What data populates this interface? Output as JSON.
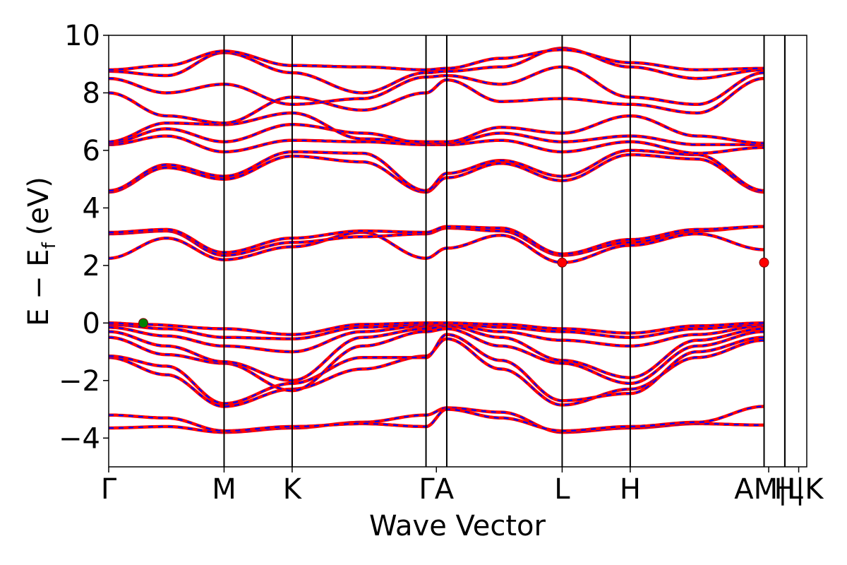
{
  "chart_data": {
    "type": "line",
    "title": "",
    "xlabel": "Wave Vector",
    "ylabel_main": "E − E",
    "ylabel_sub": "f",
    "ylabel_unit": "(eV)",
    "ylim": [
      -5,
      10
    ],
    "xlim": [
      0,
      6.05
    ],
    "yticks": [
      {
        "value": 10,
        "label": "10"
      },
      {
        "value": 8,
        "label": "8"
      },
      {
        "value": 6,
        "label": "6"
      },
      {
        "value": 4,
        "label": "4"
      },
      {
        "value": 2,
        "label": "2"
      },
      {
        "value": 0,
        "label": "0"
      },
      {
        "value": -2,
        "label": "−2"
      },
      {
        "value": -4,
        "label": "−4"
      }
    ],
    "kpoints": [
      {
        "label": "Γ",
        "x": 0.0
      },
      {
        "label": "M",
        "x": 1.0
      },
      {
        "label": "K",
        "x": 1.59
      },
      {
        "label": "Γ",
        "x": 2.75
      },
      {
        "label": "A",
        "x": 2.93
      },
      {
        "label": "L",
        "x": 3.93
      },
      {
        "label": "H",
        "x": 4.52
      },
      {
        "label": "A",
        "x": 5.68
      },
      {
        "label": "M",
        "x": 5.68
      },
      {
        "label": "L",
        "x": 5.86
      },
      {
        "label": "K",
        "x": 6.05
      }
    ],
    "kpoint_label_text": [
      "Γ",
      "M",
      "K",
      "ΓA",
      "L",
      "H",
      "AM|L",
      "H|K"
    ],
    "segments": [
      [
        0.0,
        1.0
      ],
      [
        1.0,
        1.59
      ],
      [
        1.59,
        2.75
      ],
      [
        2.75,
        2.93
      ],
      [
        2.93,
        3.93
      ],
      [
        3.93,
        4.52
      ],
      [
        4.52,
        5.68
      ],
      [
        5.68,
        5.86
      ],
      [
        5.86,
        6.05
      ]
    ],
    "bands": [
      {
        "name": "v1",
        "points": [
          [
            0,
            -3.65
          ],
          [
            0.5,
            -3.6
          ],
          [
            1.0,
            -3.8
          ],
          [
            1.59,
            -3.65
          ],
          [
            2.2,
            -3.45
          ],
          [
            2.75,
            -3.2
          ],
          [
            2.93,
            -2.95
          ],
          [
            3.4,
            -3.1
          ],
          [
            3.93,
            -3.8
          ],
          [
            4.52,
            -3.65
          ],
          [
            5.1,
            -3.5
          ],
          [
            5.68,
            -3.55
          ]
        ]
      },
      {
        "name": "v2",
        "points": [
          [
            0,
            -3.2
          ],
          [
            0.5,
            -3.3
          ],
          [
            1.0,
            -3.75
          ],
          [
            1.59,
            -3.6
          ],
          [
            2.2,
            -3.5
          ],
          [
            2.75,
            -3.6
          ],
          [
            2.93,
            -3.0
          ],
          [
            3.4,
            -3.3
          ],
          [
            3.93,
            -3.75
          ],
          [
            4.52,
            -3.6
          ],
          [
            5.1,
            -3.45
          ],
          [
            5.68,
            -2.9
          ]
        ]
      },
      {
        "name": "v3",
        "points": [
          [
            0,
            -1.2
          ],
          [
            0.5,
            -1.8
          ],
          [
            1.0,
            -2.9
          ],
          [
            1.59,
            -2.3
          ],
          [
            2.2,
            -1.6
          ],
          [
            2.75,
            -1.15
          ],
          [
            2.93,
            -0.55
          ],
          [
            3.4,
            -1.6
          ],
          [
            3.93,
            -2.85
          ],
          [
            4.52,
            -2.3
          ],
          [
            5.1,
            -1.2
          ],
          [
            5.68,
            -0.6
          ]
        ]
      },
      {
        "name": "v4",
        "points": [
          [
            0,
            -1.15
          ],
          [
            0.5,
            -1.5
          ],
          [
            1.0,
            -2.8
          ],
          [
            1.59,
            -2.1
          ],
          [
            2.2,
            -1.2
          ],
          [
            2.75,
            -1.2
          ],
          [
            2.93,
            -0.4
          ],
          [
            3.4,
            -1.3
          ],
          [
            3.93,
            -2.7
          ],
          [
            4.52,
            -2.45
          ],
          [
            5.1,
            -1.0
          ],
          [
            5.68,
            -0.5
          ]
        ]
      },
      {
        "name": "v5",
        "points": [
          [
            0,
            -0.5
          ],
          [
            0.5,
            -1.1
          ],
          [
            1.0,
            -1.4
          ],
          [
            1.59,
            -2.35
          ],
          [
            2.2,
            -0.8
          ],
          [
            2.75,
            -0.3
          ],
          [
            2.93,
            -0.2
          ],
          [
            3.4,
            -0.8
          ],
          [
            3.93,
            -1.4
          ],
          [
            4.52,
            -2.1
          ],
          [
            5.1,
            -0.8
          ],
          [
            5.68,
            -0.3
          ]
        ]
      },
      {
        "name": "v6",
        "points": [
          [
            0,
            -0.3
          ],
          [
            0.5,
            -0.8
          ],
          [
            1.0,
            -1.35
          ],
          [
            1.59,
            -2.0
          ],
          [
            2.2,
            -0.5
          ],
          [
            2.75,
            -0.2
          ],
          [
            2.93,
            -0.1
          ],
          [
            3.4,
            -0.5
          ],
          [
            3.93,
            -1.3
          ],
          [
            4.52,
            -1.9
          ],
          [
            5.1,
            -0.6
          ],
          [
            5.68,
            -0.2
          ]
        ]
      },
      {
        "name": "v7",
        "points": [
          [
            0,
            -0.15
          ],
          [
            0.5,
            -0.45
          ],
          [
            1.0,
            -0.8
          ],
          [
            1.59,
            -1.0
          ],
          [
            2.2,
            -0.3
          ],
          [
            2.75,
            -0.1
          ],
          [
            2.93,
            -0.05
          ],
          [
            3.4,
            -0.3
          ],
          [
            3.93,
            -0.6
          ],
          [
            4.52,
            -0.8
          ],
          [
            5.1,
            -0.4
          ],
          [
            5.68,
            -0.1
          ]
        ]
      },
      {
        "name": "v8",
        "points": [
          [
            0,
            -0.05
          ],
          [
            0.5,
            -0.2
          ],
          [
            1.0,
            -0.5
          ],
          [
            1.59,
            -0.55
          ],
          [
            2.2,
            -0.15
          ],
          [
            2.75,
            -0.05
          ],
          [
            2.93,
            0.0
          ],
          [
            3.4,
            -0.15
          ],
          [
            3.93,
            -0.3
          ],
          [
            4.52,
            -0.5
          ],
          [
            5.1,
            -0.2
          ],
          [
            5.68,
            -0.05
          ]
        ]
      },
      {
        "name": "v9",
        "points": [
          [
            0,
            0.0
          ],
          [
            0.3,
            -0.05
          ],
          [
            1.0,
            -0.2
          ],
          [
            1.59,
            -0.4
          ],
          [
            2.2,
            -0.05
          ],
          [
            2.75,
            0.0
          ],
          [
            2.93,
            0.0
          ],
          [
            3.4,
            -0.05
          ],
          [
            3.93,
            -0.2
          ],
          [
            4.52,
            -0.35
          ],
          [
            5.1,
            -0.1
          ],
          [
            5.68,
            0.0
          ]
        ]
      },
      {
        "name": "c1",
        "points": [
          [
            0,
            2.25
          ],
          [
            0.5,
            2.95
          ],
          [
            1.0,
            2.2
          ],
          [
            1.59,
            2.65
          ],
          [
            2.2,
            3.15
          ],
          [
            2.75,
            2.25
          ],
          [
            2.93,
            2.6
          ],
          [
            3.4,
            3.05
          ],
          [
            3.93,
            2.1
          ],
          [
            4.52,
            2.7
          ],
          [
            5.1,
            3.1
          ],
          [
            5.68,
            2.55
          ]
        ]
      },
      {
        "name": "c2",
        "points": [
          [
            0,
            3.1
          ],
          [
            0.5,
            3.2
          ],
          [
            1.0,
            2.35
          ],
          [
            1.59,
            2.8
          ],
          [
            2.2,
            3.0
          ],
          [
            2.75,
            3.1
          ],
          [
            2.93,
            3.3
          ],
          [
            3.4,
            3.2
          ],
          [
            3.93,
            2.35
          ],
          [
            4.52,
            2.8
          ],
          [
            5.1,
            3.2
          ],
          [
            5.68,
            3.35
          ]
        ]
      },
      {
        "name": "c3",
        "points": [
          [
            0,
            3.15
          ],
          [
            0.5,
            3.25
          ],
          [
            1.0,
            2.45
          ],
          [
            1.59,
            2.95
          ],
          [
            2.2,
            3.2
          ],
          [
            2.75,
            3.15
          ],
          [
            2.93,
            3.35
          ],
          [
            3.4,
            3.3
          ],
          [
            3.93,
            2.4
          ],
          [
            4.52,
            2.9
          ],
          [
            5.1,
            3.25
          ],
          [
            5.68,
            3.35
          ]
        ]
      },
      {
        "name": "c4",
        "points": [
          [
            0,
            4.55
          ],
          [
            0.5,
            5.4
          ],
          [
            1.0,
            5.0
          ],
          [
            1.59,
            5.8
          ],
          [
            2.2,
            5.6
          ],
          [
            2.75,
            4.55
          ],
          [
            2.93,
            5.05
          ],
          [
            3.4,
            5.55
          ],
          [
            3.93,
            4.95
          ],
          [
            4.52,
            5.85
          ],
          [
            5.1,
            5.7
          ],
          [
            5.68,
            4.55
          ]
        ]
      },
      {
        "name": "c5",
        "points": [
          [
            0,
            4.6
          ],
          [
            0.5,
            5.5
          ],
          [
            1.0,
            5.1
          ],
          [
            1.59,
            5.95
          ],
          [
            2.2,
            5.9
          ],
          [
            2.75,
            4.6
          ],
          [
            2.93,
            5.2
          ],
          [
            3.4,
            5.65
          ],
          [
            3.93,
            5.1
          ],
          [
            4.52,
            6.0
          ],
          [
            5.1,
            5.85
          ],
          [
            5.68,
            4.6
          ]
        ]
      },
      {
        "name": "c6",
        "points": [
          [
            0,
            6.2
          ],
          [
            0.5,
            6.5
          ],
          [
            1.0,
            5.95
          ],
          [
            1.59,
            6.35
          ],
          [
            2.2,
            6.3
          ],
          [
            2.75,
            6.2
          ],
          [
            2.93,
            6.2
          ],
          [
            3.4,
            6.35
          ],
          [
            3.93,
            5.95
          ],
          [
            4.52,
            6.3
          ],
          [
            5.1,
            5.9
          ],
          [
            5.68,
            6.1
          ]
        ]
      },
      {
        "name": "c7",
        "points": [
          [
            0,
            6.25
          ],
          [
            0.5,
            6.75
          ],
          [
            1.0,
            6.3
          ],
          [
            1.59,
            6.9
          ],
          [
            2.2,
            6.6
          ],
          [
            2.75,
            6.25
          ],
          [
            2.93,
            6.25
          ],
          [
            3.4,
            6.6
          ],
          [
            3.93,
            6.3
          ],
          [
            4.52,
            6.5
          ],
          [
            5.1,
            6.2
          ],
          [
            5.68,
            6.2
          ]
        ]
      },
      {
        "name": "c8",
        "points": [
          [
            0,
            6.3
          ],
          [
            0.5,
            6.95
          ],
          [
            1.0,
            6.9
          ],
          [
            1.59,
            7.3
          ],
          [
            2.2,
            6.4
          ],
          [
            2.75,
            6.3
          ],
          [
            2.93,
            6.3
          ],
          [
            3.4,
            6.8
          ],
          [
            3.93,
            6.6
          ],
          [
            4.52,
            7.2
          ],
          [
            5.1,
            6.5
          ],
          [
            5.68,
            6.25
          ]
        ]
      },
      {
        "name": "c9",
        "points": [
          [
            0,
            8.0
          ],
          [
            0.5,
            7.2
          ],
          [
            1.0,
            6.95
          ],
          [
            1.59,
            7.85
          ],
          [
            2.2,
            7.4
          ],
          [
            2.75,
            8.0
          ],
          [
            2.93,
            8.45
          ],
          [
            3.4,
            7.7
          ],
          [
            3.93,
            7.8
          ],
          [
            4.52,
            7.6
          ],
          [
            5.1,
            7.3
          ],
          [
            5.68,
            8.5
          ]
        ]
      },
      {
        "name": "c10",
        "points": [
          [
            0,
            8.5
          ],
          [
            0.5,
            8.0
          ],
          [
            1.0,
            8.3
          ],
          [
            1.59,
            7.6
          ],
          [
            2.2,
            7.8
          ],
          [
            2.75,
            8.55
          ],
          [
            2.93,
            8.6
          ],
          [
            3.4,
            8.3
          ],
          [
            3.93,
            8.9
          ],
          [
            4.52,
            7.85
          ],
          [
            5.1,
            7.6
          ],
          [
            5.68,
            8.7
          ]
        ]
      },
      {
        "name": "c11",
        "points": [
          [
            0,
            8.75
          ],
          [
            0.5,
            8.6
          ],
          [
            1.0,
            9.4
          ],
          [
            1.59,
            8.7
          ],
          [
            2.2,
            8.0
          ],
          [
            2.75,
            8.7
          ],
          [
            2.93,
            8.75
          ],
          [
            3.4,
            8.9
          ],
          [
            3.93,
            9.55
          ],
          [
            4.52,
            8.9
          ],
          [
            5.1,
            8.5
          ],
          [
            5.68,
            8.8
          ]
        ]
      },
      {
        "name": "c12",
        "points": [
          [
            0,
            8.8
          ],
          [
            0.5,
            8.95
          ],
          [
            1.0,
            9.45
          ],
          [
            1.59,
            8.95
          ],
          [
            2.2,
            8.9
          ],
          [
            2.75,
            8.8
          ],
          [
            2.93,
            8.85
          ],
          [
            3.4,
            9.2
          ],
          [
            3.93,
            9.5
          ],
          [
            4.52,
            9.05
          ],
          [
            5.1,
            8.8
          ],
          [
            5.68,
            8.85
          ]
        ]
      }
    ],
    "markers": [
      {
        "name": "vbm",
        "x": 0.3,
        "y": 0.0,
        "color": "#008000"
      },
      {
        "name": "cbm-1",
        "x": 3.93,
        "y": 2.1,
        "color": "#ff0000"
      },
      {
        "name": "cbm-2",
        "x": 5.68,
        "y": 2.1,
        "color": "#ff0000"
      }
    ],
    "colors": {
      "band_outer": "#ff0000",
      "band_inner": "#0000ff",
      "axis": "#000000"
    },
    "grid": false
  }
}
